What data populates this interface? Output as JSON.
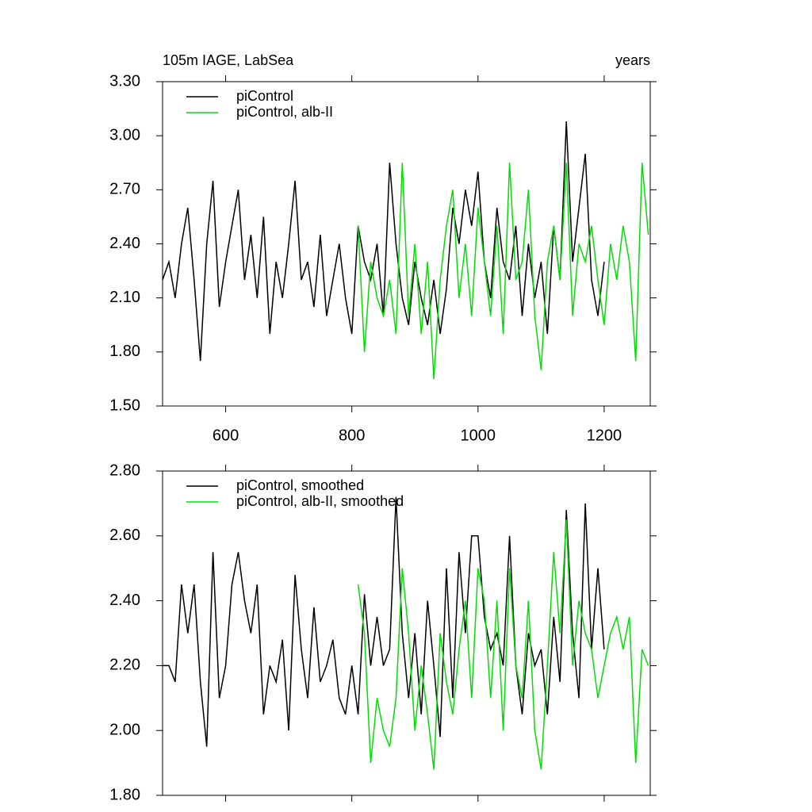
{
  "chart_data": [
    {
      "type": "line",
      "title": "105m IAGE, LabSea",
      "right_title": "years",
      "xlim": [
        500,
        1273
      ],
      "xticks": [
        600,
        800,
        1000,
        1200
      ],
      "ylim": [
        1.5,
        3.3
      ],
      "yticks": [
        {
          "value": 1.5,
          "label": "1.50"
        },
        {
          "value": 1.8,
          "label": "1.80"
        },
        {
          "value": 2.1,
          "label": "2.10"
        },
        {
          "value": 2.4,
          "label": "2.40"
        },
        {
          "value": 2.7,
          "label": "2.70"
        },
        {
          "value": 3.0,
          "label": "3.00"
        },
        {
          "value": 3.3,
          "label": "3.30"
        }
      ],
      "legend": "upper left",
      "series": [
        {
          "name": "piControl",
          "color": "#000000",
          "x": [
            500,
            510,
            520,
            530,
            540,
            550,
            560,
            570,
            580,
            590,
            600,
            610,
            620,
            630,
            640,
            650,
            660,
            670,
            680,
            690,
            700,
            710,
            720,
            730,
            740,
            750,
            760,
            770,
            780,
            790,
            800,
            810,
            820,
            830,
            840,
            850,
            860,
            870,
            880,
            890,
            900,
            910,
            920,
            930,
            940,
            950,
            960,
            970,
            980,
            990,
            1000,
            1010,
            1020,
            1030,
            1040,
            1050,
            1060,
            1070,
            1080,
            1090,
            1100,
            1110,
            1120,
            1130,
            1140,
            1150,
            1160,
            1170,
            1180,
            1190,
            1200
          ],
          "values": [
            2.2,
            2.3,
            2.1,
            2.4,
            2.6,
            2.2,
            1.75,
            2.4,
            2.75,
            2.05,
            2.3,
            2.5,
            2.7,
            2.2,
            2.45,
            2.1,
            2.55,
            1.9,
            2.3,
            2.1,
            2.4,
            2.75,
            2.2,
            2.3,
            2.05,
            2.45,
            2.0,
            2.2,
            2.4,
            2.1,
            1.9,
            2.5,
            2.3,
            2.2,
            2.4,
            2.0,
            2.85,
            2.4,
            2.1,
            1.95,
            2.3,
            2.1,
            1.95,
            2.2,
            1.9,
            2.15,
            2.6,
            2.4,
            2.7,
            2.5,
            2.8,
            2.3,
            2.1,
            2.6,
            2.3,
            2.2,
            2.5,
            2.0,
            2.4,
            2.1,
            2.3,
            1.9,
            2.5,
            2.2,
            3.08,
            2.3,
            2.6,
            2.9,
            2.2,
            2.0,
            2.3
          ]
        },
        {
          "name": "piControl, alb-II",
          "color": "#00e000",
          "x": [
            810,
            820,
            830,
            840,
            850,
            860,
            870,
            880,
            890,
            900,
            910,
            920,
            930,
            940,
            950,
            960,
            970,
            980,
            990,
            1000,
            1010,
            1020,
            1030,
            1040,
            1050,
            1060,
            1070,
            1080,
            1090,
            1100,
            1110,
            1120,
            1130,
            1140,
            1150,
            1160,
            1170,
            1180,
            1190,
            1200,
            1210,
            1220,
            1230,
            1240,
            1250,
            1260,
            1270
          ],
          "values": [
            2.5,
            1.8,
            2.3,
            2.1,
            2.0,
            2.2,
            1.9,
            2.85,
            2.0,
            2.4,
            1.9,
            2.3,
            1.65,
            2.2,
            2.5,
            2.7,
            2.1,
            2.4,
            2.0,
            2.6,
            2.3,
            2.0,
            2.5,
            1.9,
            2.85,
            2.2,
            2.3,
            2.7,
            2.0,
            1.7,
            2.3,
            2.5,
            2.2,
            2.85,
            2.0,
            2.4,
            2.3,
            2.5,
            2.2,
            1.95,
            2.4,
            2.2,
            2.5,
            2.3,
            1.75,
            2.85,
            2.45
          ]
        }
      ]
    },
    {
      "type": "line",
      "xlim": [
        500,
        1273
      ],
      "xticks": [
        600,
        800,
        1000,
        1200
      ],
      "ylim": [
        1.8,
        2.8
      ],
      "yticks": [
        {
          "value": 1.8,
          "label": "1.80"
        },
        {
          "value": 2.0,
          "label": "2.00"
        },
        {
          "value": 2.2,
          "label": "2.20"
        },
        {
          "value": 2.4,
          "label": "2.40"
        },
        {
          "value": 2.6,
          "label": "2.60"
        },
        {
          "value": 2.8,
          "label": "2.80"
        }
      ],
      "legend": "upper left",
      "series": [
        {
          "name": "piControl, smoothed",
          "color": "#000000",
          "x": [
            500,
            510,
            520,
            530,
            540,
            550,
            560,
            570,
            580,
            590,
            600,
            610,
            620,
            630,
            640,
            650,
            660,
            670,
            680,
            690,
            700,
            710,
            720,
            730,
            740,
            750,
            760,
            770,
            780,
            790,
            800,
            810,
            820,
            830,
            840,
            850,
            860,
            870,
            880,
            890,
            900,
            910,
            920,
            930,
            940,
            950,
            960,
            970,
            980,
            990,
            1000,
            1010,
            1020,
            1030,
            1040,
            1050,
            1060,
            1070,
            1080,
            1090,
            1100,
            1110,
            1120,
            1130,
            1140,
            1150,
            1160,
            1170,
            1180,
            1190,
            1200
          ],
          "values": [
            2.2,
            2.2,
            2.15,
            2.45,
            2.3,
            2.45,
            2.15,
            1.95,
            2.55,
            2.1,
            2.2,
            2.45,
            2.55,
            2.4,
            2.3,
            2.45,
            2.05,
            2.2,
            2.15,
            2.28,
            2.0,
            2.48,
            2.25,
            2.1,
            2.38,
            2.15,
            2.2,
            2.28,
            2.1,
            2.05,
            2.2,
            2.05,
            2.42,
            2.2,
            2.35,
            2.2,
            2.25,
            2.72,
            2.3,
            2.1,
            2.3,
            2.05,
            2.4,
            2.2,
            1.98,
            2.5,
            2.1,
            2.55,
            2.3,
            2.6,
            2.6,
            2.35,
            2.25,
            2.3,
            2.2,
            2.6,
            2.2,
            2.05,
            2.3,
            2.2,
            2.25,
            2.05,
            2.35,
            2.15,
            2.68,
            2.3,
            2.1,
            2.7,
            2.25,
            2.5,
            2.25
          ]
        },
        {
          "name": "piControl, alb-II, smoothed",
          "color": "#00e000",
          "x": [
            810,
            820,
            830,
            840,
            850,
            860,
            870,
            880,
            890,
            900,
            910,
            920,
            930,
            940,
            950,
            960,
            970,
            980,
            990,
            1000,
            1010,
            1020,
            1030,
            1040,
            1050,
            1060,
            1070,
            1080,
            1090,
            1100,
            1110,
            1120,
            1130,
            1140,
            1150,
            1160,
            1170,
            1180,
            1190,
            1200,
            1210,
            1220,
            1230,
            1240,
            1250,
            1260,
            1270
          ],
          "values": [
            2.45,
            2.3,
            1.9,
            2.1,
            2.0,
            1.95,
            2.1,
            2.5,
            2.3,
            2.0,
            2.2,
            2.05,
            1.88,
            2.3,
            2.15,
            2.05,
            2.25,
            2.4,
            2.1,
            2.5,
            2.4,
            2.1,
            2.4,
            2.0,
            2.5,
            2.2,
            2.1,
            2.4,
            2.0,
            1.88,
            2.2,
            2.55,
            2.3,
            2.65,
            2.2,
            2.4,
            2.3,
            2.25,
            2.1,
            2.2,
            2.3,
            2.35,
            2.25,
            2.35,
            1.9,
            2.25,
            2.2
          ]
        }
      ]
    }
  ]
}
